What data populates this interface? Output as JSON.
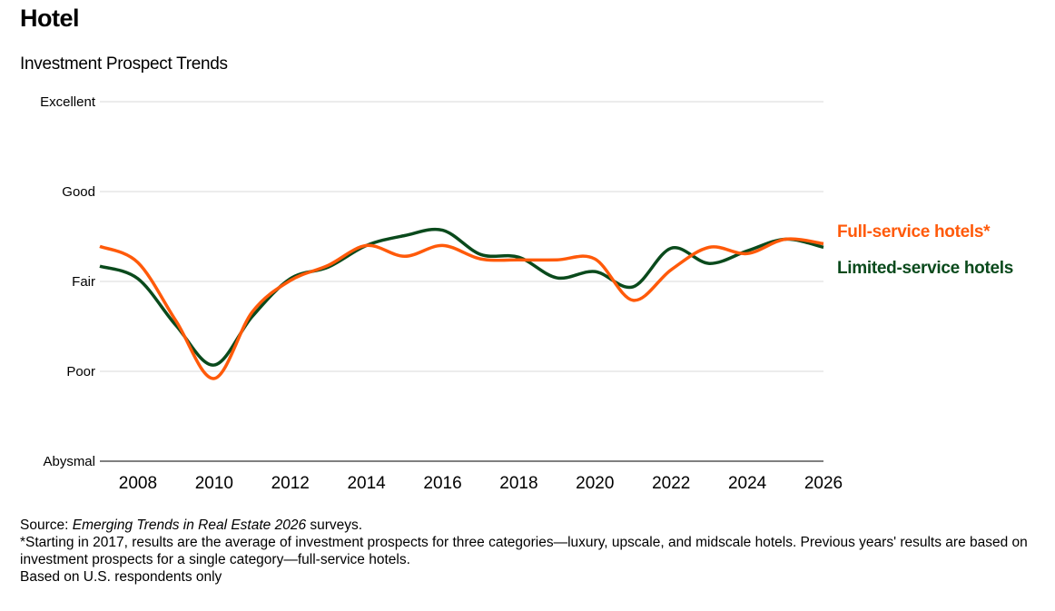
{
  "title": "Hotel",
  "subtitle": "Investment Prospect Trends",
  "chart_data": {
    "type": "line",
    "x": [
      2007,
      2008,
      2009,
      2010,
      2011,
      2012,
      2013,
      2014,
      2015,
      2016,
      2017,
      2018,
      2019,
      2020,
      2021,
      2022,
      2023,
      2024,
      2025,
      2026
    ],
    "xlim": [
      2007,
      2026
    ],
    "x_ticks": [
      2008,
      2010,
      2012,
      2014,
      2016,
      2018,
      2020,
      2022,
      2024,
      2026
    ],
    "ylim": [
      1,
      5
    ],
    "y_ticks": [
      {
        "value": 1,
        "label": "Abysmal"
      },
      {
        "value": 2,
        "label": "Poor"
      },
      {
        "value": 3,
        "label": "Fair"
      },
      {
        "value": 4,
        "label": "Good"
      },
      {
        "value": 5,
        "label": "Excellent"
      }
    ],
    "grid": "horizontal",
    "legend": "right, inline labels",
    "series": [
      {
        "name": "Full-service hotels*",
        "color": "#ff5a0a",
        "values": [
          3.39,
          3.21,
          2.56,
          1.92,
          2.66,
          3.01,
          3.18,
          3.4,
          3.28,
          3.4,
          3.25,
          3.24,
          3.24,
          3.25,
          2.79,
          3.13,
          3.38,
          3.31,
          3.47,
          3.42
        ]
      },
      {
        "name": "Limited-service hotels",
        "color": "#0a4a1c",
        "values": [
          3.17,
          3.03,
          2.51,
          2.07,
          2.61,
          3.03,
          3.16,
          3.4,
          3.51,
          3.57,
          3.3,
          3.27,
          3.04,
          3.11,
          2.94,
          3.37,
          3.2,
          3.34,
          3.47,
          3.38
        ]
      }
    ]
  },
  "notes": {
    "source_prefix": "Source: ",
    "source_title": "Emerging Trends in Real Estate 2026",
    "source_suffix": " surveys.",
    "footnote": "*Starting in 2017, results are the average of investment prospects for three categories—luxury, upscale, and midscale hotels. Previous years' results are based on investment prospects for a single category—full-service hotels.",
    "respondents": "Based on U.S. respondents only"
  }
}
